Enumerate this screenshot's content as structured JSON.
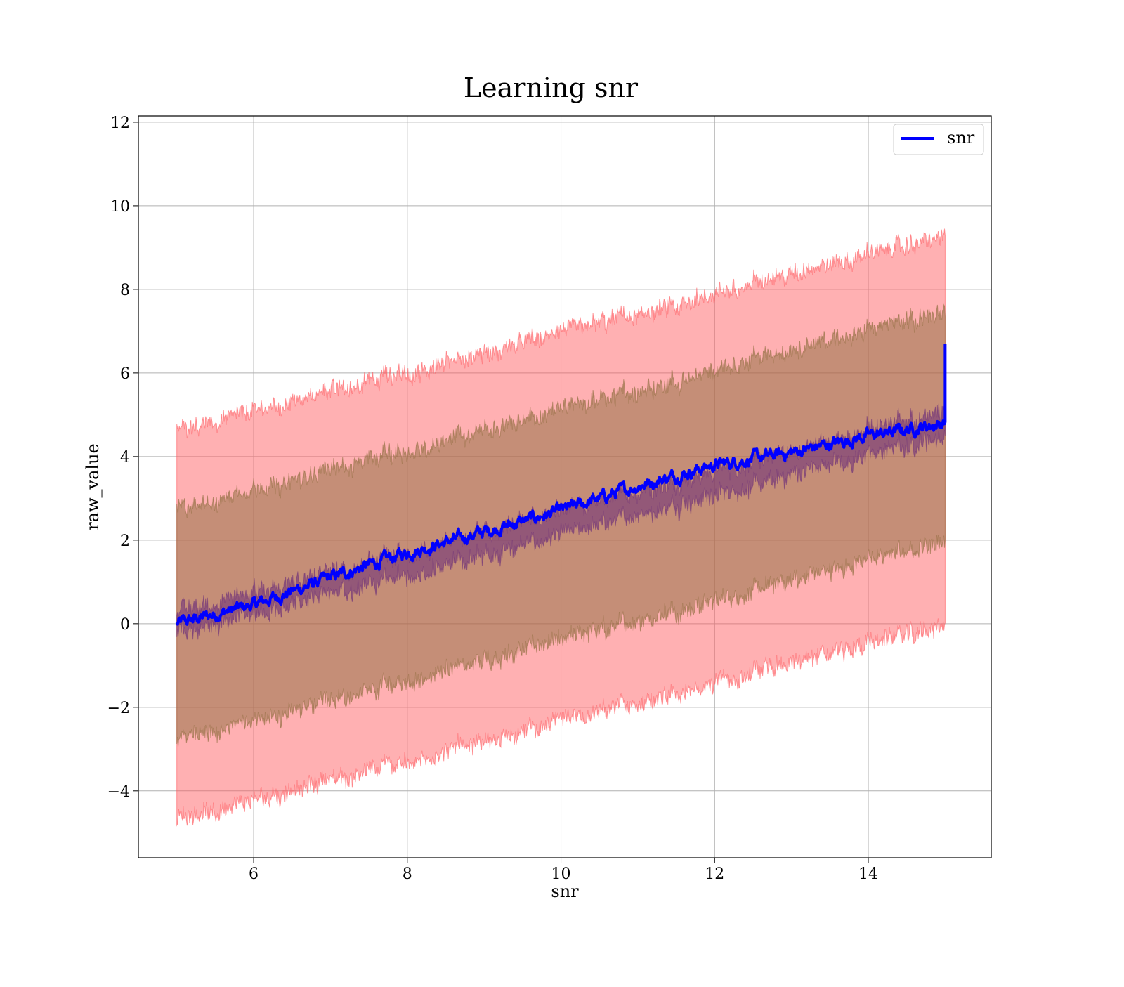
{
  "chart_data": {
    "type": "line",
    "title": "Learning snr",
    "xlabel": "snr",
    "ylabel": "raw_value",
    "xlim": [
      4.5,
      15.6
    ],
    "ylim": [
      -5.6,
      12.15
    ],
    "x_ticks": [
      6,
      8,
      10,
      12,
      14
    ],
    "y_ticks": [
      -4,
      -2,
      0,
      2,
      4,
      6,
      8,
      10,
      12
    ],
    "x_tick_labels": [
      "6",
      "8",
      "10",
      "12",
      "14"
    ],
    "y_tick_labels": [
      "−4",
      "−2",
      "0",
      "2",
      "4",
      "6",
      "8",
      "10",
      "12"
    ],
    "grid": true,
    "legend": {
      "position": "top-right",
      "entries": [
        "snr"
      ]
    },
    "colors": {
      "line": "#0000ff",
      "outer_band": "#ff5a5f",
      "inner_band": "#8c6b3c",
      "tight_band": "#6a2c7a"
    },
    "series": [
      {
        "name": "snr",
        "x_range": [
          5.0,
          15.0
        ],
        "start_value": 0.0,
        "end_value": 4.8,
        "final_spike": 6.7,
        "sample_points": [
          [
            5.0,
            0.0
          ],
          [
            6.0,
            0.45
          ],
          [
            7.0,
            1.1
          ],
          [
            8.0,
            1.7
          ],
          [
            9.0,
            2.2
          ],
          [
            10.0,
            2.7
          ],
          [
            11.0,
            3.3
          ],
          [
            12.0,
            3.8
          ],
          [
            13.0,
            4.1
          ],
          [
            14.0,
            4.5
          ],
          [
            15.0,
            4.8
          ]
        ]
      }
    ],
    "bands": [
      {
        "name": "outer",
        "start": [
          -4.7,
          4.6
        ],
        "end": [
          0.0,
          9.3
        ]
      },
      {
        "name": "inner",
        "start": [
          -2.8,
          2.7
        ],
        "end": [
          2.0,
          7.5
        ]
      },
      {
        "name": "tight",
        "start": [
          -0.25,
          0.25
        ],
        "end": [
          4.5,
          5.1
        ]
      }
    ]
  }
}
